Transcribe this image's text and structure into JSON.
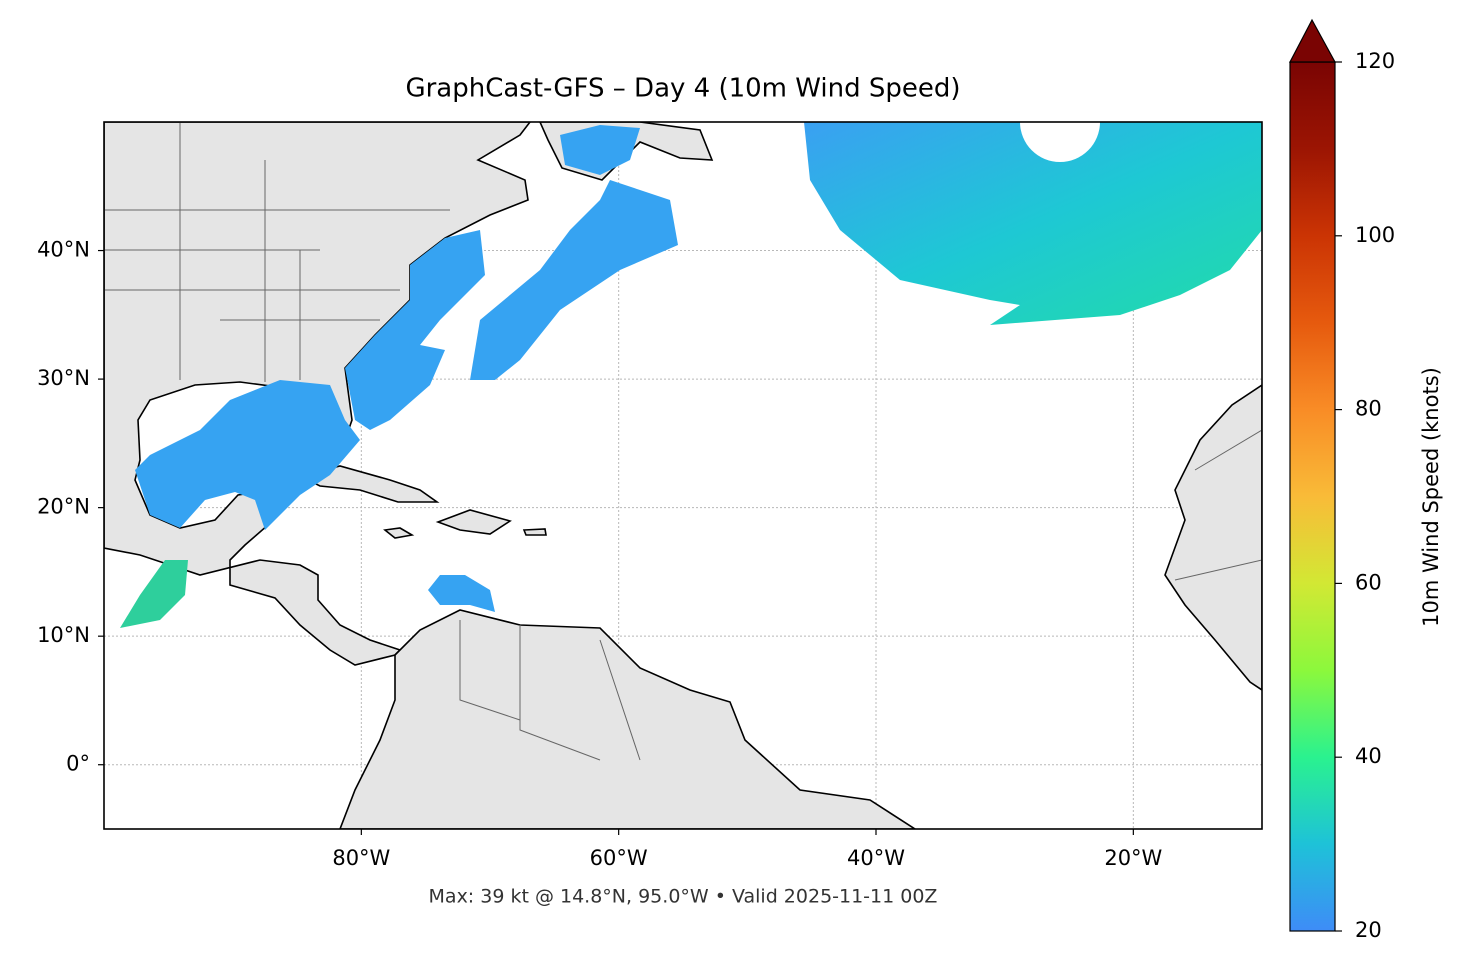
{
  "chart_data": {
    "type": "map",
    "title": "GraphCast-GFS – Day 4 (10m Wind Speed)",
    "footnote": "Max: 39 kt @ 14.8°N, 95.0°W • Valid 2025-11-11 00Z",
    "xlim": [
      -100,
      -10
    ],
    "ylim": [
      -5,
      50
    ],
    "xticks": [
      {
        "value": -80,
        "label": "80°W"
      },
      {
        "value": -60,
        "label": "60°W"
      },
      {
        "value": -40,
        "label": "40°W"
      },
      {
        "value": -20,
        "label": "20°W"
      }
    ],
    "yticks": [
      {
        "value": 0,
        "label": "0°"
      },
      {
        "value": 10,
        "label": "10°N"
      },
      {
        "value": 20,
        "label": "20°N"
      },
      {
        "value": 30,
        "label": "30°N"
      },
      {
        "value": 40,
        "label": "40°N"
      }
    ],
    "grid": true,
    "colorbar": {
      "label": "10m Wind Speed (knots)",
      "lim": [
        20,
        120
      ],
      "ticks": [
        20,
        40,
        60,
        80,
        100,
        120
      ],
      "colormap": "turbo",
      "extend": "max"
    }
  }
}
